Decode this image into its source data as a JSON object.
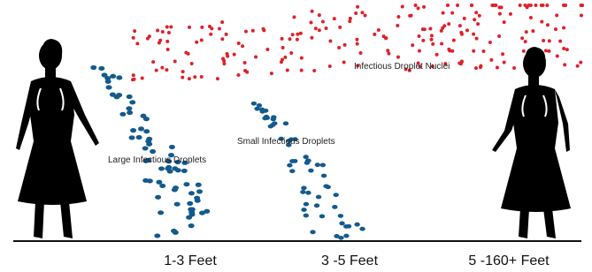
{
  "labels": {
    "nuclei": "Infectious Droplet Nuclei",
    "large": "Large Infectious Droplets",
    "small": "Small Infectious Droplets"
  },
  "distances": [
    "1-3 Feet",
    "3 -5 Feet",
    "5 -160+ Feet"
  ]
}
